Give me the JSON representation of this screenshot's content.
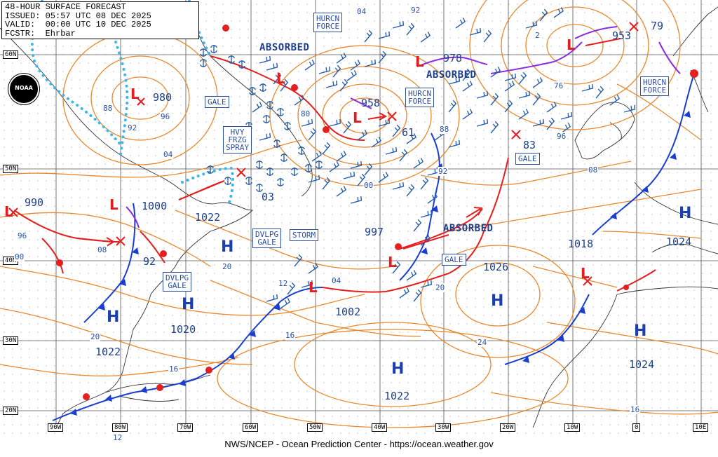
{
  "header": {
    "line1": "48-HOUR SURFACE FORECAST",
    "line2": "ISSUED: 05:57 UTC 08 DEC 2025",
    "line3": "VALID:  00:00 UTC 10 DEC 2025",
    "line4": "FCSTR:  Ehrbar"
  },
  "logo": {
    "text": "NOAA"
  },
  "footer": "NWS/NCEP - Ocean Prediction Center - https://ocean.weather.gov",
  "latitudes": [
    "60N",
    "50N",
    "40N",
    "30N",
    "20N"
  ],
  "longitudes": [
    "90W",
    "80W",
    "70W",
    "60W",
    "50W",
    "40W",
    "30W",
    "20W",
    "10W",
    "0",
    "10E"
  ],
  "pressures": {
    "p980": "980",
    "p958": "958",
    "p978": "978",
    "p953": "953",
    "p61": "61",
    "p83": "83",
    "p990": "990",
    "p1000": "1000",
    "p1022a": "1022",
    "p03": "03",
    "p997": "997",
    "p92": "92",
    "p1020": "1020",
    "p1022b": "1022",
    "p1002": "1002",
    "p1022c": "1022",
    "p1026": "1026",
    "p1018": "1018",
    "p1024a": "1024",
    "p1024b": "1024",
    "p79": "79"
  },
  "highs": [
    "H",
    "H",
    "H",
    "H",
    "H",
    "H",
    "H"
  ],
  "lows": [
    "L",
    "L",
    "L",
    "L",
    "L",
    "L",
    "L",
    "L",
    "L",
    "L"
  ],
  "warnings": {
    "gale1": "GALE",
    "hvy": "HVY\nFRZG\nSPRAY",
    "hurcn1": "HURCN\nFORCE",
    "hurcn2": "HURCN\nFORCE",
    "hurcn3": "HURCN\nFORCE",
    "gale2": "GALE",
    "gale3": "GALE",
    "dvlpg1": "DVLPG\nGALE",
    "storm": "STORM",
    "dvlpg2": "DVLPG\nGALE"
  },
  "absorbed": [
    "ABSORBED",
    "ABSORBED",
    "ABSORBED"
  ],
  "isobar_labels": [
    "04",
    "92",
    "88",
    "96",
    "92",
    "04",
    "80",
    "00",
    "92",
    "88",
    "2",
    "76",
    "96",
    "08",
    "96",
    "00",
    "08",
    "20",
    "12",
    "04",
    "20",
    "16",
    "24",
    "16",
    "20",
    "16",
    "12"
  ],
  "colors": {
    "isobar": "#e8892e",
    "wind": "#2a5fa8",
    "cold": "#1a3fd0",
    "warm": "#e41f1f",
    "occluded": "#8a2be2",
    "ice": "#3fb6e8"
  }
}
